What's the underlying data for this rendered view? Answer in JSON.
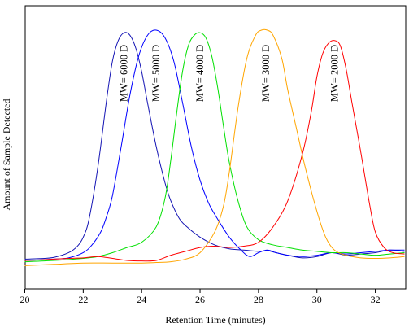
{
  "chart_data": {
    "type": "line",
    "title": "",
    "xlabel": "Retention Time (minutes)",
    "ylabel": "Amount of Sample Detected",
    "xlim": [
      20,
      33
    ],
    "ylim": [
      0,
      1
    ],
    "xticks": [
      20,
      22,
      24,
      26,
      28,
      30,
      32
    ],
    "grid": false,
    "legend": "none",
    "series": [
      {
        "name": "MW= 6000 D",
        "color": "#1414b4",
        "label_x": 23.4,
        "x": [
          20.0,
          20.5,
          21.0,
          21.5,
          21.8,
          22.0,
          22.2,
          22.5,
          22.8,
          23.0,
          23.2,
          23.4,
          23.6,
          23.8,
          24.0,
          24.2,
          24.5,
          24.8,
          25.0,
          25.3,
          25.6,
          26.0,
          26.5,
          27.0,
          27.5,
          28.0,
          28.3,
          28.6,
          29.0,
          29.5,
          30.0,
          30.5,
          31.0,
          31.5,
          32.0,
          32.5,
          33.0
        ],
        "y": [
          0.115,
          0.117,
          0.122,
          0.14,
          0.165,
          0.2,
          0.27,
          0.47,
          0.73,
          0.88,
          0.96,
          0.99,
          0.98,
          0.93,
          0.84,
          0.72,
          0.55,
          0.41,
          0.34,
          0.27,
          0.235,
          0.2,
          0.17,
          0.155,
          0.15,
          0.145,
          0.148,
          0.14,
          0.13,
          0.12,
          0.125,
          0.14,
          0.13,
          0.135,
          0.14,
          0.15,
          0.145
        ]
      },
      {
        "name": "MW= 5000 D",
        "color": "#0000ff",
        "label_x": 24.5,
        "x": [
          20.0,
          20.5,
          21.0,
          21.5,
          22.0,
          22.3,
          22.6,
          22.8,
          23.0,
          23.3,
          23.6,
          23.9,
          24.2,
          24.5,
          24.8,
          25.1,
          25.4,
          25.7,
          26.0,
          26.3,
          26.6,
          27.0,
          27.4,
          27.7,
          28.0,
          28.3,
          28.6,
          29.0,
          29.5,
          30.0,
          30.5,
          31.0,
          31.5,
          32.0,
          32.5,
          33.0
        ],
        "y": [
          0.11,
          0.112,
          0.115,
          0.12,
          0.14,
          0.17,
          0.22,
          0.28,
          0.36,
          0.55,
          0.75,
          0.9,
          0.98,
          1.0,
          0.97,
          0.88,
          0.72,
          0.55,
          0.42,
          0.33,
          0.27,
          0.2,
          0.15,
          0.125,
          0.14,
          0.15,
          0.14,
          0.13,
          0.125,
          0.13,
          0.14,
          0.135,
          0.14,
          0.145,
          0.15,
          0.15
        ]
      },
      {
        "name": "MW= 4000 D",
        "color": "#00e000",
        "label_x": 26.0,
        "x": [
          20.0,
          21.0,
          22.0,
          22.5,
          23.0,
          23.5,
          24.0,
          24.5,
          24.8,
          25.0,
          25.2,
          25.4,
          25.6,
          25.8,
          26.0,
          26.2,
          26.4,
          26.6,
          26.8,
          27.0,
          27.3,
          27.6,
          28.0,
          28.5,
          29.0,
          29.5,
          30.0,
          30.5,
          31.0,
          31.5,
          32.0,
          32.5,
          33.0
        ],
        "y": [
          0.105,
          0.11,
          0.118,
          0.125,
          0.14,
          0.16,
          0.18,
          0.24,
          0.35,
          0.5,
          0.68,
          0.84,
          0.94,
          0.98,
          0.99,
          0.97,
          0.9,
          0.78,
          0.63,
          0.49,
          0.34,
          0.24,
          0.19,
          0.17,
          0.16,
          0.15,
          0.145,
          0.14,
          0.14,
          0.135,
          0.13,
          0.135,
          0.14
        ]
      },
      {
        "name": "MW= 3000 D",
        "color": "#ffa500",
        "label_x": 28.25,
        "x": [
          20.0,
          21.0,
          22.0,
          23.0,
          24.0,
          24.5,
          25.0,
          25.5,
          26.0,
          26.5,
          26.8,
          27.0,
          27.3,
          27.6,
          27.9,
          28.1,
          28.3,
          28.5,
          28.8,
          29.0,
          29.3,
          29.6,
          30.0,
          30.3,
          30.6,
          31.0,
          31.5,
          32.0,
          32.5,
          33.0
        ],
        "y": [
          0.09,
          0.095,
          0.1,
          0.1,
          0.1,
          0.102,
          0.105,
          0.115,
          0.14,
          0.22,
          0.32,
          0.45,
          0.7,
          0.89,
          0.98,
          1.0,
          1.0,
          0.98,
          0.89,
          0.77,
          0.62,
          0.47,
          0.3,
          0.2,
          0.15,
          0.13,
          0.12,
          0.118,
          0.12,
          0.125
        ]
      },
      {
        "name": "MW= 2000 D",
        "color": "#ff0000",
        "label_x": 30.6,
        "x": [
          20.0,
          20.5,
          21.0,
          21.5,
          22.0,
          22.5,
          23.0,
          23.5,
          24.0,
          24.5,
          25.0,
          25.5,
          26.0,
          26.5,
          27.0,
          27.5,
          28.0,
          28.5,
          29.0,
          29.5,
          29.8,
          30.0,
          30.2,
          30.4,
          30.6,
          30.8,
          31.0,
          31.2,
          31.5,
          31.8,
          32.0,
          32.3,
          32.6,
          33.0
        ],
        "y": [
          0.11,
          0.112,
          0.115,
          0.118,
          0.12,
          0.125,
          0.118,
          0.11,
          0.108,
          0.11,
          0.13,
          0.145,
          0.16,
          0.165,
          0.16,
          0.165,
          0.18,
          0.24,
          0.34,
          0.52,
          0.68,
          0.82,
          0.91,
          0.95,
          0.96,
          0.94,
          0.85,
          0.72,
          0.53,
          0.33,
          0.22,
          0.16,
          0.14,
          0.135
        ]
      }
    ]
  }
}
